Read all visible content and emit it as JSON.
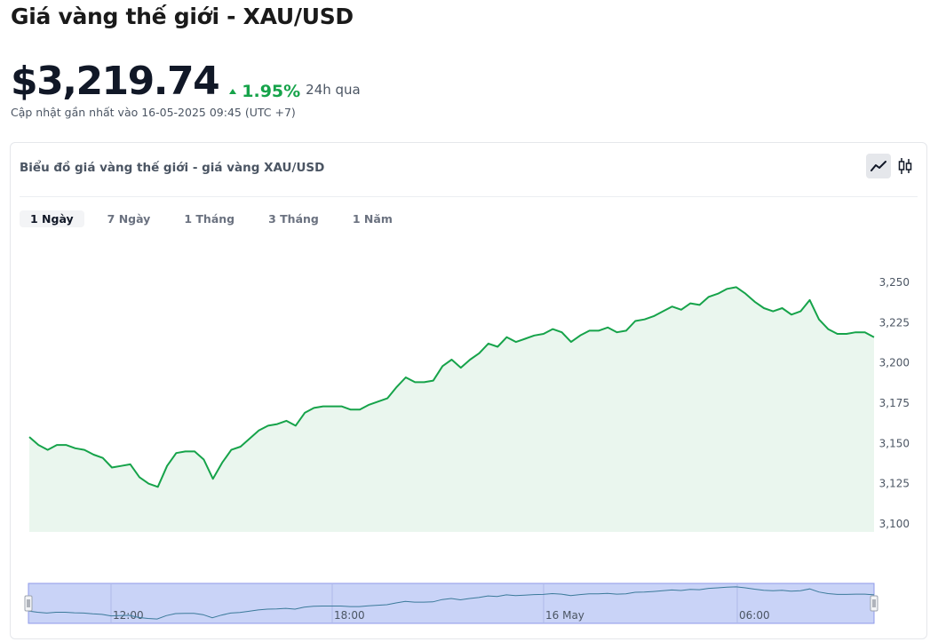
{
  "header": {
    "title": "Giá vàng thế giới - XAU/USD",
    "price": "$3,219.74",
    "change": "1.95%",
    "period": "24h qua",
    "updated": "Cập nhật gần nhất vào 16-05-2025 09:45 (UTC +7)"
  },
  "card": {
    "title": "Biểu đồ giá vàng thế giới - giá vàng XAU/USD",
    "tabs": [
      {
        "label": "1 Ngày",
        "active": true
      },
      {
        "label": "7 Ngày",
        "active": false
      },
      {
        "label": "1 Tháng",
        "active": false
      },
      {
        "label": "3 Tháng",
        "active": false
      },
      {
        "label": "1 Năm",
        "active": false
      }
    ],
    "toggles": [
      {
        "icon": "line-chart-icon",
        "active": true
      },
      {
        "icon": "candlestick-icon",
        "active": false
      }
    ]
  },
  "colors": {
    "line": "#16a34a",
    "fill": "#eaf6ee",
    "navigator_bg": "#c9d3f7",
    "navigator_border": "#8e9ae8",
    "up": "#16a34a"
  },
  "chart_data": {
    "type": "area",
    "ylim": [
      3100,
      3250
    ],
    "yticks": [
      "3,250",
      "3,225",
      "3,200",
      "3,175",
      "3,150",
      "3,125",
      "3,100"
    ],
    "ytick_values": [
      3250,
      3225,
      3200,
      3175,
      3150,
      3125,
      3100
    ],
    "navigator_labels": [
      "12:00",
      "18:00",
      "16 May",
      "06:00"
    ],
    "values": [
      3154,
      3149,
      3146,
      3149,
      3149,
      3147,
      3146,
      3143,
      3141,
      3135,
      3136,
      3137,
      3129,
      3125,
      3123,
      3136,
      3144,
      3145,
      3145,
      3140,
      3128,
      3138,
      3146,
      3148,
      3153,
      3158,
      3161,
      3162,
      3164,
      3161,
      3169,
      3172,
      3173,
      3173,
      3173,
      3171,
      3171,
      3174,
      3176,
      3178,
      3185,
      3191,
      3188,
      3188,
      3189,
      3198,
      3202,
      3197,
      3202,
      3206,
      3212,
      3210,
      3216,
      3213,
      3215,
      3217,
      3218,
      3221,
      3219,
      3213,
      3217,
      3220,
      3220,
      3222,
      3219,
      3220,
      3226,
      3227,
      3229,
      3232,
      3235,
      3233,
      3237,
      3236,
      3241,
      3243,
      3246,
      3247,
      3243,
      3238,
      3234,
      3232,
      3234,
      3230,
      3232,
      3239,
      3227,
      3221,
      3218,
      3218,
      3219,
      3219,
      3216
    ]
  }
}
